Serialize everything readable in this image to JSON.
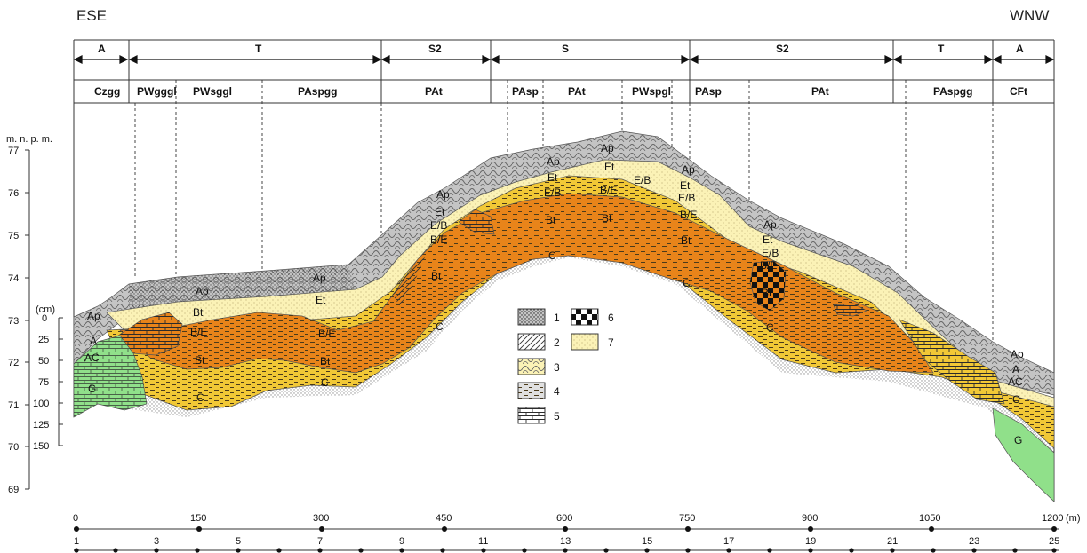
{
  "orientation": {
    "left": "ESE",
    "right": "WNW"
  },
  "segments": [
    "A",
    "T",
    "S2",
    "S",
    "S2",
    "T",
    "A"
  ],
  "units": [
    "Czgg",
    "PWgggl",
    "PWsggl",
    "PAspgg",
    "PAt",
    "PAsp",
    "PAt",
    "PWspgl",
    "PAsp",
    "PAt",
    "PAspgg",
    "CFt"
  ],
  "elevation_axis": {
    "title": "m. n. p. m.",
    "ticks": [
      "77",
      "76",
      "75",
      "74",
      "73",
      "72",
      "71",
      "70",
      "69"
    ]
  },
  "depth_axis": {
    "title": "(cm)",
    "ticks": [
      "0",
      "25",
      "50",
      "75",
      "100",
      "125",
      "150"
    ]
  },
  "distance_axis": {
    "ticks": [
      "0",
      "150",
      "300",
      "450",
      "600",
      "750",
      "900",
      "1050",
      "1200"
    ],
    "unit": "(m)"
  },
  "profile_numbers": [
    "1",
    "3",
    "5",
    "7",
    "9",
    "11",
    "13",
    "15",
    "17",
    "19",
    "21",
    "23",
    "25"
  ],
  "legend": [
    "1",
    "2",
    "3",
    "4",
    "5",
    "6",
    "7"
  ],
  "horizons": [
    "Ap",
    "A",
    "AC",
    "G",
    "Ap",
    "Bt",
    "B/E",
    "Bt",
    "C",
    "Ap",
    "Et",
    "B/E",
    "Bt",
    "C",
    "Ap",
    "Et",
    "E/B",
    "B/E",
    "Bt",
    "C",
    "Ap",
    "Et",
    "E/B",
    "B/E",
    "Bt",
    "Bt",
    "C",
    "Ap",
    "Et",
    "E/B",
    "Ap",
    "Et",
    "E/B",
    "B/E",
    "Bt",
    "C",
    "Ap",
    "Et",
    "E/B",
    "B/E",
    "Bt",
    "C",
    "Ap",
    "A",
    "AC",
    "C",
    "G"
  ],
  "colors": {
    "topsoil": "#c4c4c4",
    "eluvial": "#fbf2b6",
    "illuvial": "#f1c836",
    "argillic_core": "#e8841a",
    "gley": "#90e08a",
    "line": "#333333"
  }
}
